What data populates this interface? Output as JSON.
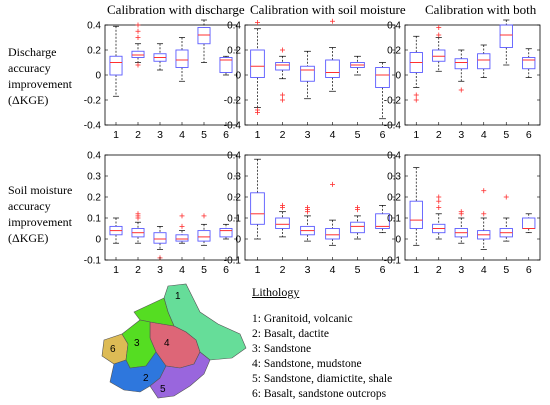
{
  "headers": {
    "col1": "Calibration with discharge",
    "col2": "Calibration with soil moisture",
    "col3": "Calibration with both"
  },
  "row_labels": {
    "row1": [
      "Discharge",
      "accuracy",
      "improvement",
      "(ΔKGE)"
    ],
    "row2": [
      "Soil moisture",
      "accuracy",
      "improvement",
      "(ΔKGE)"
    ]
  },
  "legend": {
    "title": "Lithology",
    "items": [
      "1: Granitoid, volcanic",
      "2: Basalt, dactite",
      "3: Sandstone",
      "4: Sandstone, mudstone",
      "5: Sandstone, diamictite, shale",
      "6: Basalt, sandstone outcrops"
    ]
  },
  "map_labels": [
    "1",
    "2",
    "3",
    "4",
    "5",
    "6"
  ],
  "colors": {
    "box": "#5a5aff",
    "median": "#ff3030",
    "outlier": "#ff3030",
    "whisker": "#000000",
    "map": [
      "#66dd99",
      "#2e77dd",
      "#55dd22",
      "#dd6677",
      "#9966dd",
      "#ddbb55"
    ]
  },
  "chart_data": [
    {
      "type": "box",
      "title": "Calibration with discharge",
      "ylabel": "Discharge accuracy improvement (ΔKGE)",
      "categories": [
        "1",
        "2",
        "3",
        "4",
        "5",
        "6"
      ],
      "ylim": [
        -0.4,
        0.4
      ],
      "yticks": [
        -0.4,
        -0.2,
        0,
        0.2,
        0.4
      ],
      "boxes": [
        {
          "min": -0.17,
          "q1": 0.0,
          "median": 0.1,
          "q3": 0.15,
          "max": 0.39,
          "outliers": []
        },
        {
          "min": 0.1,
          "q1": 0.14,
          "median": 0.16,
          "q3": 0.19,
          "max": 0.25,
          "outliers": [
            0.4,
            0.35,
            0.3,
            0.08
          ]
        },
        {
          "min": 0.04,
          "q1": 0.11,
          "median": 0.14,
          "q3": 0.17,
          "max": 0.25,
          "outliers": []
        },
        {
          "min": -0.05,
          "q1": 0.06,
          "median": 0.12,
          "q3": 0.2,
          "max": 0.3,
          "outliers": []
        },
        {
          "min": 0.1,
          "q1": 0.25,
          "median": 0.32,
          "q3": 0.38,
          "max": 0.44,
          "outliers": []
        },
        {
          "min": 0.0,
          "q1": 0.02,
          "median": 0.12,
          "q3": 0.14,
          "max": 0.15,
          "outliers": []
        }
      ]
    },
    {
      "type": "box",
      "title": "Calibration with soil moisture",
      "categories": [
        "1",
        "2",
        "3",
        "4",
        "5",
        "6"
      ],
      "ylim": [
        -0.4,
        0.4
      ],
      "yticks": [
        -0.4,
        -0.2,
        0,
        0.2,
        0.4
      ],
      "boxes": [
        {
          "min": -0.26,
          "q1": -0.02,
          "median": 0.07,
          "q3": 0.2,
          "max": 0.37,
          "outliers": [
            0.42,
            -0.28,
            -0.3
          ]
        },
        {
          "min": -0.03,
          "q1": 0.04,
          "median": 0.08,
          "q3": 0.1,
          "max": 0.15,
          "outliers": [
            0.2,
            -0.16,
            -0.2
          ]
        },
        {
          "min": -0.19,
          "q1": -0.05,
          "median": 0.04,
          "q3": 0.07,
          "max": 0.19,
          "outliers": []
        },
        {
          "min": -0.13,
          "q1": -0.02,
          "median": 0.02,
          "q3": 0.12,
          "max": 0.22,
          "outliers": [
            0.43
          ]
        },
        {
          "min": 0.0,
          "q1": 0.06,
          "median": 0.08,
          "q3": 0.1,
          "max": 0.15,
          "outliers": []
        },
        {
          "min": -0.35,
          "q1": -0.1,
          "median": 0.0,
          "q3": 0.06,
          "max": 0.1,
          "outliers": []
        }
      ]
    },
    {
      "type": "box",
      "title": "Calibration with both",
      "categories": [
        "1",
        "2",
        "3",
        "4",
        "5",
        "6"
      ],
      "ylim": [
        -0.4,
        0.4
      ],
      "yticks": [
        -0.4,
        -0.2,
        0,
        0.2,
        0.4
      ],
      "boxes": [
        {
          "min": -0.1,
          "q1": 0.02,
          "median": 0.1,
          "q3": 0.18,
          "max": 0.31,
          "outliers": [
            -0.16,
            -0.2
          ]
        },
        {
          "min": 0.03,
          "q1": 0.11,
          "median": 0.15,
          "q3": 0.2,
          "max": 0.3,
          "outliers": [
            0.38,
            0.32
          ]
        },
        {
          "min": -0.05,
          "q1": 0.05,
          "median": 0.1,
          "q3": 0.13,
          "max": 0.2,
          "outliers": [
            -0.12
          ]
        },
        {
          "min": -0.02,
          "q1": 0.05,
          "median": 0.12,
          "q3": 0.17,
          "max": 0.24,
          "outliers": []
        },
        {
          "min": 0.08,
          "q1": 0.22,
          "median": 0.32,
          "q3": 0.4,
          "max": 0.44,
          "outliers": []
        },
        {
          "min": -0.02,
          "q1": 0.05,
          "median": 0.12,
          "q3": 0.14,
          "max": 0.21,
          "outliers": []
        }
      ]
    },
    {
      "type": "box",
      "title": "Calibration with discharge",
      "ylabel": "Soil moisture accuracy improvement (ΔKGE)",
      "categories": [
        "1",
        "2",
        "3",
        "4",
        "5",
        "6"
      ],
      "ylim": [
        -0.1,
        0.4
      ],
      "yticks": [
        -0.1,
        0,
        0.1,
        0.2,
        0.3,
        0.4
      ],
      "boxes": [
        {
          "min": -0.02,
          "q1": 0.02,
          "median": 0.04,
          "q3": 0.06,
          "max": 0.1,
          "outliers": []
        },
        {
          "min": -0.02,
          "q1": 0.01,
          "median": 0.03,
          "q3": 0.05,
          "max": 0.08,
          "outliers": [
            0.12,
            0.11,
            0.1
          ]
        },
        {
          "min": -0.05,
          "q1": -0.02,
          "median": 0.0,
          "q3": 0.03,
          "max": 0.06,
          "outliers": [
            -0.09
          ]
        },
        {
          "min": -0.02,
          "q1": -0.01,
          "median": 0.0,
          "q3": 0.02,
          "max": 0.04,
          "outliers": [
            0.11,
            0.06
          ]
        },
        {
          "min": -0.03,
          "q1": -0.01,
          "median": 0.01,
          "q3": 0.04,
          "max": 0.07,
          "outliers": [
            0.11
          ]
        },
        {
          "min": 0.0,
          "q1": 0.01,
          "median": 0.04,
          "q3": 0.05,
          "max": 0.07,
          "outliers": []
        }
      ]
    },
    {
      "type": "box",
      "title": "Calibration with soil moisture",
      "categories": [
        "1",
        "2",
        "3",
        "4",
        "5",
        "6"
      ],
      "ylim": [
        -0.1,
        0.4
      ],
      "yticks": [
        -0.1,
        0,
        0.1,
        0.2,
        0.3,
        0.4
      ],
      "boxes": [
        {
          "min": 0.0,
          "q1": 0.07,
          "median": 0.12,
          "q3": 0.22,
          "max": 0.38,
          "outliers": []
        },
        {
          "min": 0.01,
          "q1": 0.05,
          "median": 0.07,
          "q3": 0.1,
          "max": 0.13,
          "outliers": [
            0.16,
            0.15
          ]
        },
        {
          "min": -0.01,
          "q1": 0.02,
          "median": 0.04,
          "q3": 0.06,
          "max": 0.11,
          "outliers": [
            0.15,
            0.14,
            0.13
          ]
        },
        {
          "min": -0.03,
          "q1": 0.0,
          "median": 0.02,
          "q3": 0.05,
          "max": 0.09,
          "outliers": [
            0.26
          ]
        },
        {
          "min": 0.0,
          "q1": 0.03,
          "median": 0.06,
          "q3": 0.08,
          "max": 0.11,
          "outliers": [
            0.15,
            0.14
          ]
        },
        {
          "min": 0.03,
          "q1": 0.05,
          "median": 0.06,
          "q3": 0.12,
          "max": 0.16,
          "outliers": []
        }
      ]
    },
    {
      "type": "box",
      "title": "Calibration with both",
      "categories": [
        "1",
        "2",
        "3",
        "4",
        "5",
        "6"
      ],
      "ylim": [
        -0.1,
        0.4
      ],
      "yticks": [
        -0.1,
        0,
        0.1,
        0.2,
        0.3,
        0.4
      ],
      "boxes": [
        {
          "min": -0.03,
          "q1": 0.05,
          "median": 0.09,
          "q3": 0.18,
          "max": 0.34,
          "outliers": []
        },
        {
          "min": 0.0,
          "q1": 0.03,
          "median": 0.05,
          "q3": 0.07,
          "max": 0.12,
          "outliers": [
            0.2,
            0.18,
            0.15
          ]
        },
        {
          "min": -0.02,
          "q1": 0.01,
          "median": 0.03,
          "q3": 0.05,
          "max": 0.1,
          "outliers": [
            0.13,
            0.12
          ]
        },
        {
          "min": -0.05,
          "q1": 0.0,
          "median": 0.02,
          "q3": 0.04,
          "max": 0.1,
          "outliers": [
            0.23,
            0.12
          ]
        },
        {
          "min": -0.01,
          "q1": 0.01,
          "median": 0.03,
          "q3": 0.05,
          "max": 0.1,
          "outliers": [
            0.2
          ]
        },
        {
          "min": 0.03,
          "q1": 0.05,
          "median": 0.05,
          "q3": 0.1,
          "max": 0.12,
          "outliers": []
        }
      ]
    }
  ]
}
